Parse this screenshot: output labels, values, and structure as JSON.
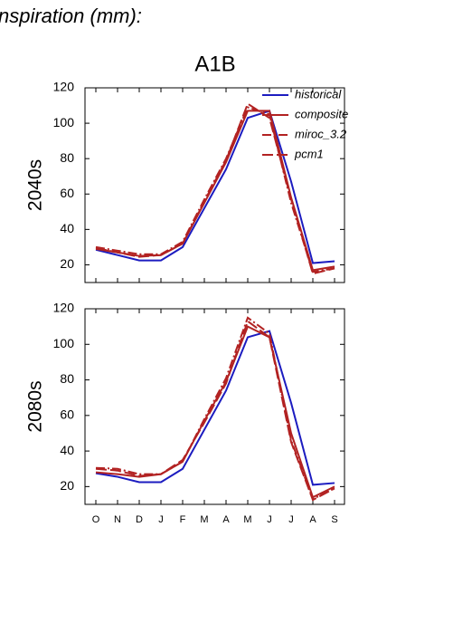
{
  "title": "nspiration (mm):",
  "subtitle": "A1B",
  "chart_data": [
    {
      "type": "line",
      "ylabel": "2040s",
      "ylim": [
        10,
        120
      ],
      "yticks": [
        20,
        40,
        60,
        80,
        100,
        120
      ],
      "legend": "upper right",
      "series": [
        {
          "name": "historical",
          "color": "#1c1cc0",
          "style": "solid",
          "values": [
            28.5,
            25.5,
            22.5,
            22.5,
            30,
            52,
            74,
            103,
            107,
            67,
            21,
            22
          ]
        },
        {
          "name": "composite",
          "color": "#b22222",
          "style": "solid",
          "values": [
            29,
            27,
            25,
            25.5,
            32,
            55,
            78,
            107,
            107,
            58,
            17,
            19
          ]
        },
        {
          "name": "miroc_3.2",
          "color": "#b22222",
          "style": "dashdot",
          "values": [
            30,
            28,
            26,
            26,
            33,
            57,
            80,
            109,
            105,
            55,
            16,
            18
          ]
        },
        {
          "name": "pcm1",
          "color": "#b22222",
          "style": "dash",
          "values": [
            29.5,
            27,
            24.5,
            25.5,
            32,
            56,
            79,
            111,
            103,
            57,
            15,
            18
          ]
        }
      ]
    },
    {
      "type": "line",
      "ylabel": "2080s",
      "ylim": [
        10,
        120
      ],
      "yticks": [
        20,
        40,
        60,
        80,
        100,
        120
      ],
      "categories": [
        "O",
        "N",
        "D",
        "J",
        "F",
        "M",
        "A",
        "M",
        "J",
        "J",
        "A",
        "S"
      ],
      "series": [
        {
          "color": "#1c1cc0",
          "style": "solid",
          "values": [
            27.5,
            25.5,
            22.5,
            22.5,
            30,
            52,
            74,
            104,
            107.5,
            67,
            21,
            22
          ]
        },
        {
          "color": "#b22222",
          "style": "solid",
          "values": [
            28,
            27,
            25.5,
            27,
            34,
            57,
            79,
            110,
            104,
            50,
            14,
            20
          ]
        },
        {
          "color": "#b22222",
          "style": "dashdot",
          "values": [
            30.5,
            30,
            27,
            27,
            34,
            58,
            81,
            115,
            106,
            46,
            13,
            19
          ]
        },
        {
          "color": "#b22222",
          "style": "dash",
          "values": [
            30,
            29,
            26,
            27,
            35,
            56,
            78,
            113,
            104,
            45,
            12.5,
            19
          ]
        }
      ]
    }
  ]
}
